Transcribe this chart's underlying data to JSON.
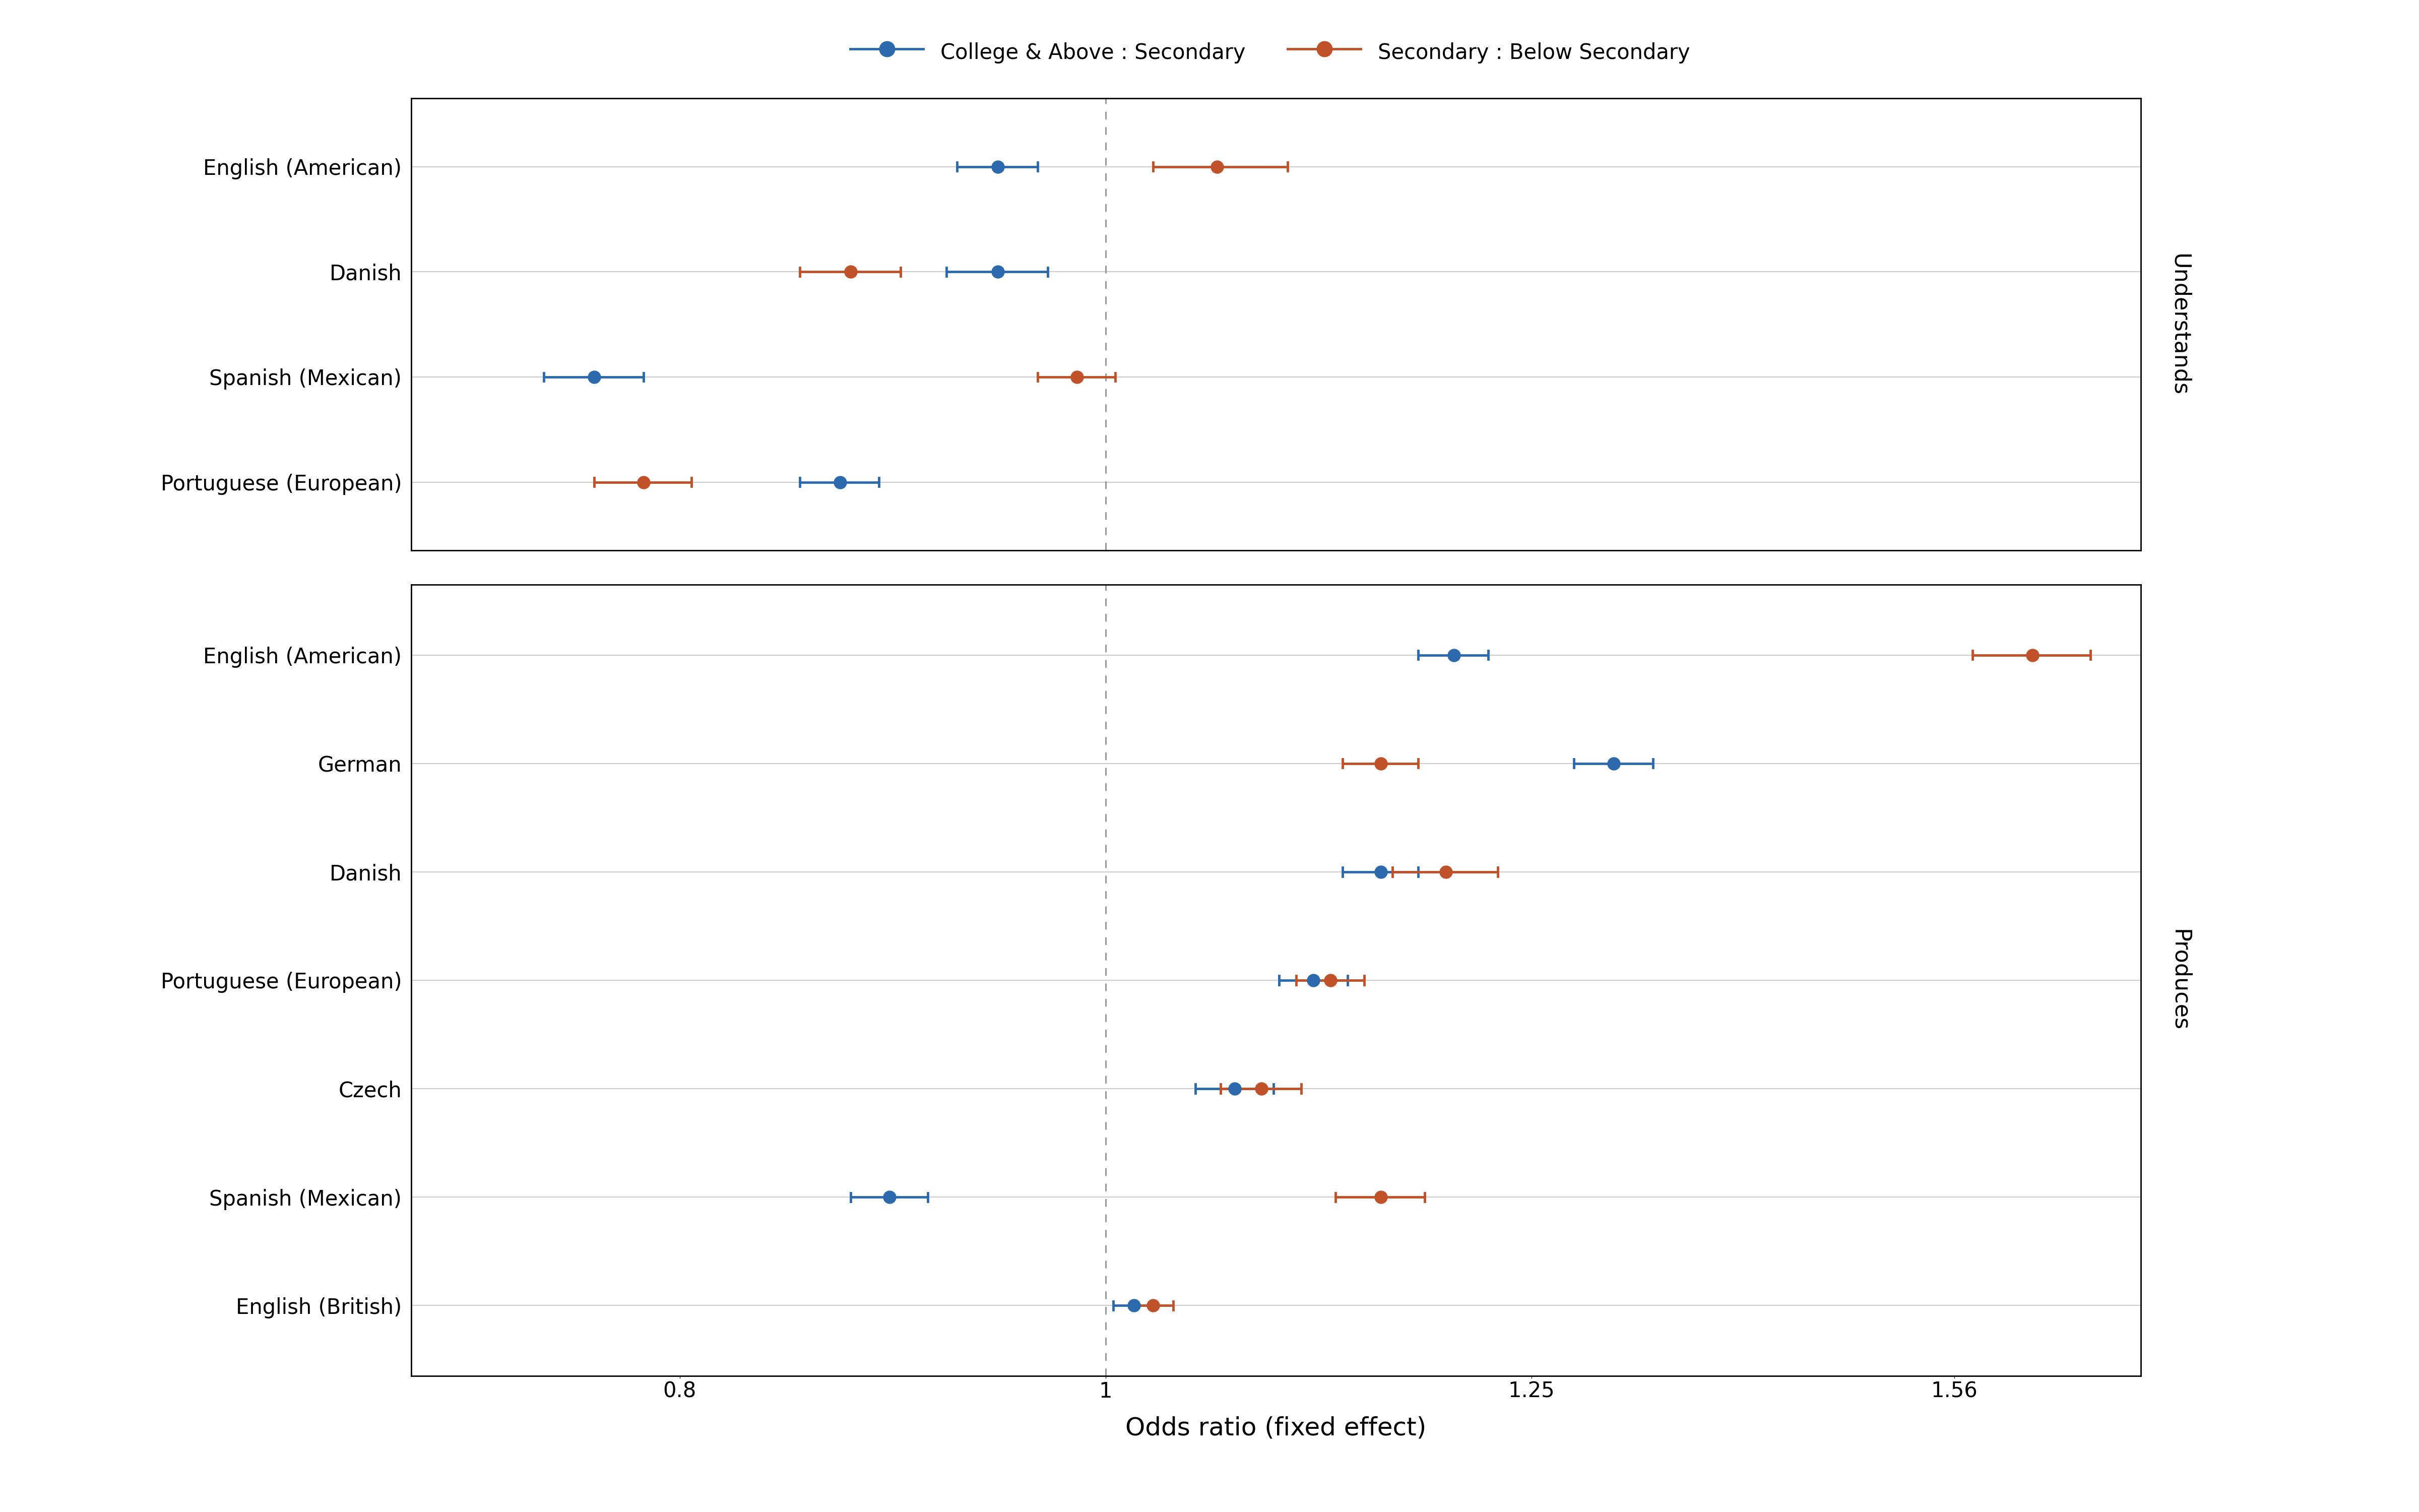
{
  "understands": {
    "labels": [
      "English (American)",
      "Danish",
      "Spanish (Mexican)",
      "Portuguese (European)"
    ],
    "college_above": {
      "means": [
        0.945,
        0.945,
        0.765,
        0.87
      ],
      "ci_low": [
        0.925,
        0.92,
        0.745,
        0.852
      ],
      "ci_high": [
        0.965,
        0.97,
        0.785,
        0.888
      ]
    },
    "secondary": {
      "means": [
        1.06,
        0.875,
        0.985,
        0.785
      ],
      "ci_low": [
        1.025,
        0.852,
        0.965,
        0.765
      ],
      "ci_high": [
        1.1,
        0.898,
        1.005,
        0.805
      ]
    }
  },
  "produces": {
    "labels": [
      "English (American)",
      "German",
      "Danish",
      "Portuguese (European)",
      "Czech",
      "Spanish (Mexican)",
      "English (British)"
    ],
    "college_above": {
      "means": [
        1.2,
        1.305,
        1.155,
        1.115,
        1.07,
        0.893,
        1.015
      ],
      "ci_low": [
        1.178,
        1.278,
        1.132,
        1.095,
        1.048,
        0.875,
        1.004
      ],
      "ci_high": [
        1.222,
        1.332,
        1.178,
        1.135,
        1.092,
        0.911,
        1.026
      ]
    },
    "secondary": {
      "means": [
        1.625,
        1.155,
        1.195,
        1.125,
        1.085,
        1.155,
        1.025
      ],
      "ci_low": [
        1.575,
        1.132,
        1.162,
        1.105,
        1.062,
        1.128,
        1.014
      ],
      "ci_high": [
        1.675,
        1.178,
        1.228,
        1.145,
        1.108,
        1.182,
        1.036
      ]
    }
  },
  "blue_color": "#2d6aad",
  "orange_color": "#c0522a",
  "legend_blue": "College & Above : Secondary",
  "legend_orange": "Secondary : Below Secondary",
  "xlabel": "Odds ratio (fixed effect)",
  "right_label_understands": "Understands",
  "right_label_produces": "Produces",
  "xlim_left": 0.695,
  "xlim_right": 1.72,
  "xticks": [
    0.8,
    1.0,
    1.25,
    1.56
  ],
  "xtick_labels": [
    "0.8",
    "1",
    "1.25",
    "1.56"
  ],
  "vline_x": 1.0,
  "grid_color": "#cccccc",
  "background_color": "#ffffff"
}
